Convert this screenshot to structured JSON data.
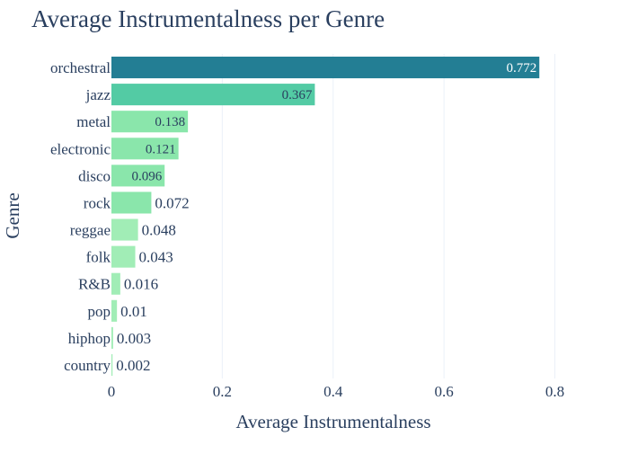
{
  "chart_data": {
    "type": "bar",
    "orientation": "horizontal",
    "title": "Average Instrumentalness per Genre",
    "xlabel": "Average Instrumentalness",
    "ylabel": "Genre",
    "xlim": [
      0,
      0.83
    ],
    "xticks": [
      0,
      0.2,
      0.4,
      0.6,
      0.8
    ],
    "xtick_labels": [
      "0",
      "0.2",
      "0.4",
      "0.6",
      "0.8"
    ],
    "grid": true,
    "categories": [
      "orchestral",
      "jazz",
      "metal",
      "electronic",
      "disco",
      "rock",
      "reggae",
      "folk",
      "R&B",
      "pop",
      "hiphop",
      "country"
    ],
    "values": [
      0.772,
      0.367,
      0.138,
      0.121,
      0.096,
      0.072,
      0.048,
      0.043,
      0.016,
      0.01,
      0.003,
      0.002
    ],
    "value_labels": [
      "0.772",
      "0.367",
      "0.138",
      "0.121",
      "0.096",
      "0.072",
      "0.048",
      "0.043",
      "0.016",
      "0.01",
      "0.003",
      "0.002"
    ],
    "bar_colors": [
      "#237e94",
      "#53cba4",
      "#8ae6ab",
      "#8ae6ab",
      "#8ae6ab",
      "#8ae6ab",
      "#a1edb6",
      "#a1edb6",
      "#a1edb6",
      "#a1edb6",
      "#a1edb6",
      "#a1edb6"
    ],
    "label_colors": [
      "#ffffff",
      "#2a3f5f",
      "#2a3f5f",
      "#2a3f5f",
      "#2a3f5f",
      "#2a3f5f",
      "#2a3f5f",
      "#2a3f5f",
      "#2a3f5f",
      "#2a3f5f",
      "#2a3f5f",
      "#2a3f5f"
    ],
    "colors": {
      "text": "#2a3f5f",
      "grid": "#ebf0f8",
      "background": "#ffffff"
    }
  }
}
